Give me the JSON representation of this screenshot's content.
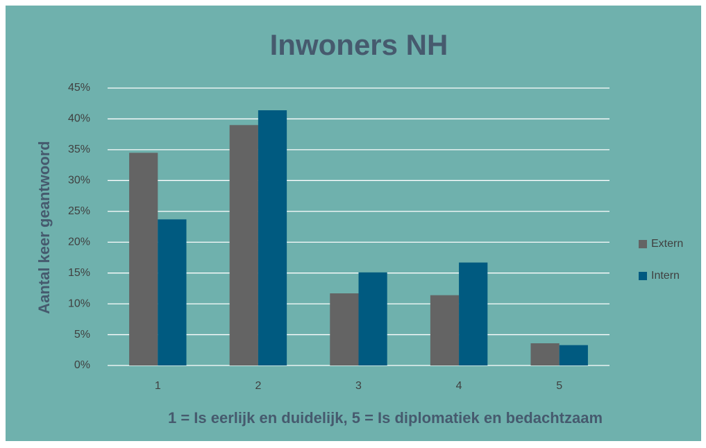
{
  "chart_data": {
    "type": "bar",
    "title": "Inwoners NH",
    "x_label": "1 = Is eerlijk en duidelijk, 5 = Is diplomatiek en bedachtzaam",
    "y_label": "Aantal keer geantwoord",
    "categories": [
      "1",
      "2",
      "3",
      "4",
      "5"
    ],
    "series": [
      {
        "name": "Extern",
        "color": "#646464",
        "values": [
          34.5,
          39,
          11.7,
          11.4,
          3.6
        ]
      },
      {
        "name": "Intern",
        "color": "#005a80",
        "values": [
          23.7,
          41.4,
          15.1,
          16.7,
          3.3
        ]
      }
    ],
    "ylim": [
      0,
      45
    ],
    "yticks": [
      {
        "value": 0,
        "label": "0%"
      },
      {
        "value": 5,
        "label": "5%"
      },
      {
        "value": 10,
        "label": "10%"
      },
      {
        "value": 15,
        "label": "15%"
      },
      {
        "value": 20,
        "label": "20%"
      },
      {
        "value": 25,
        "label": "25%"
      },
      {
        "value": 30,
        "label": "30%"
      },
      {
        "value": 35,
        "label": "35%"
      },
      {
        "value": 40,
        "label": "40%"
      },
      {
        "value": 45,
        "label": "45%"
      }
    ],
    "grid": true,
    "legend": "right"
  }
}
